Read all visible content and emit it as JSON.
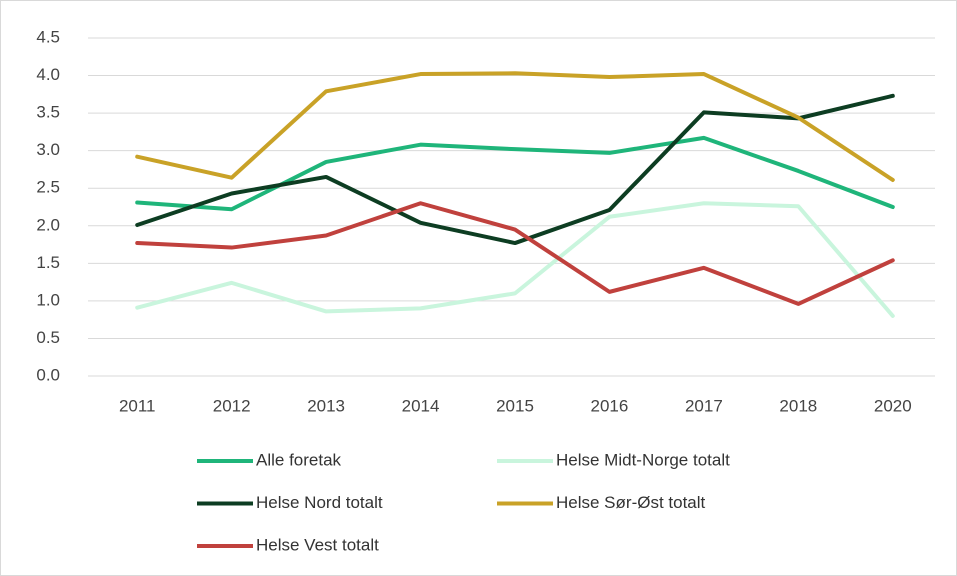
{
  "chart_data": {
    "type": "line",
    "categories": [
      "2011",
      "2012",
      "2013",
      "2014",
      "2015",
      "2016",
      "2017",
      "2018",
      "2020"
    ],
    "series": [
      {
        "name": "Alle foretak",
        "color": "#1fb57a",
        "values": [
          2.31,
          2.22,
          2.85,
          3.08,
          3.02,
          2.97,
          3.17,
          2.73,
          2.25
        ]
      },
      {
        "name": "Helse Midt-Norge totalt",
        "color": "#c9f5dd",
        "values": [
          0.91,
          1.24,
          0.86,
          0.9,
          1.1,
          2.12,
          2.3,
          2.26,
          0.8
        ]
      },
      {
        "name": "Helse Nord totalt",
        "color": "#0d3d22",
        "values": [
          2.01,
          2.43,
          2.65,
          2.04,
          1.77,
          2.21,
          3.51,
          3.43,
          3.73
        ]
      },
      {
        "name": "Helse Sør-Øst totalt",
        "color": "#c9a227",
        "values": [
          2.92,
          2.64,
          3.79,
          4.02,
          4.03,
          3.98,
          4.02,
          3.44,
          2.61
        ]
      },
      {
        "name": "Helse Vest totalt",
        "color": "#c0413d",
        "values": [
          1.77,
          1.71,
          1.87,
          2.3,
          1.95,
          1.12,
          1.44,
          0.96,
          1.54
        ]
      }
    ],
    "ylim": [
      0,
      4.5
    ],
    "yticks": [
      {
        "value": 0,
        "label": "0.0"
      },
      0.5,
      {
        "value": 1,
        "label": "1.0"
      },
      1.5,
      {
        "value": 2,
        "label": "2.0"
      },
      2.5,
      {
        "value": 3,
        "label": "3.0"
      },
      3.5,
      {
        "value": 4,
        "label": "4.0"
      },
      4.5
    ],
    "grid": true,
    "legend": "bottom"
  }
}
